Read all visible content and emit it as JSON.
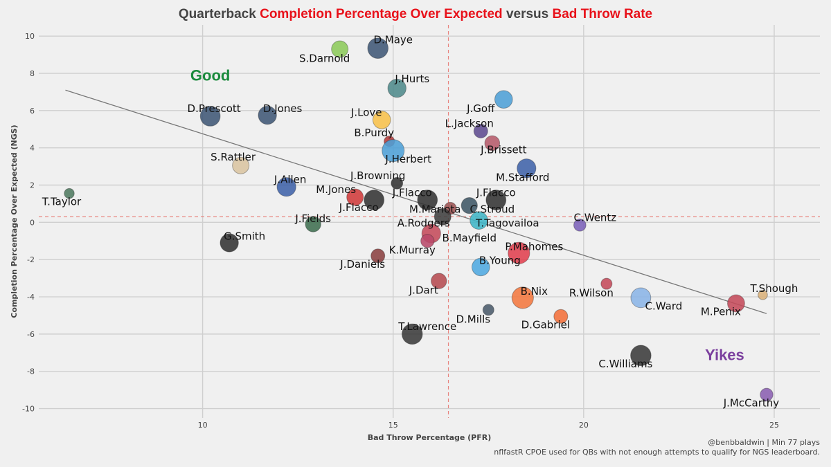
{
  "chart_data": {
    "type": "scatter",
    "title_parts": [
      {
        "text": "Quarterback ",
        "highlight": false
      },
      {
        "text": "Completion Percentage Over Expected",
        "highlight": true
      },
      {
        "text": " versus ",
        "highlight": false
      },
      {
        "text": "Bad Throw Rate",
        "highlight": true
      }
    ],
    "xlabel": "Bad Throw Percentage (PFR)",
    "ylabel": "Completion Percentage Over Expected (NGS)",
    "xlim": [
      5.7,
      26.2
    ],
    "ylim": [
      -10.5,
      10.6
    ],
    "x_ticks": [
      10,
      15,
      20,
      25
    ],
    "y_ticks": [
      -10,
      -8,
      -6,
      -4,
      -2,
      0,
      2,
      4,
      6,
      8,
      10
    ],
    "grid": true,
    "mean_x": 16.45,
    "mean_y": 0.3,
    "trend_line": {
      "x": [
        6.4,
        24.8
      ],
      "y": [
        7.1,
        -4.9
      ]
    },
    "annotations": [
      {
        "text": "Good",
        "x": 10.2,
        "y": 7.9,
        "color": "#1a8a3c"
      },
      {
        "text": "Yikes",
        "x": 23.7,
        "y": -7.1,
        "color": "#7b3f9e"
      }
    ],
    "points": [
      {
        "name": "D.Maye",
        "x": 14.6,
        "y": 9.35,
        "size": 1.35,
        "color": "#3f5775",
        "lx": 15.0,
        "ly": 9.8
      },
      {
        "name": "S.Darnold",
        "x": 13.6,
        "y": 9.3,
        "size": 1.0,
        "color": "#8cc95a",
        "lx": 13.2,
        "ly": 8.8
      },
      {
        "name": "J.Hurts",
        "x": 15.1,
        "y": 7.2,
        "size": 1.15,
        "color": "#4f8a8b",
        "lx": 15.5,
        "ly": 7.7
      },
      {
        "name": "J.Goff",
        "x": 17.9,
        "y": 6.6,
        "size": 1.1,
        "color": "#4d9fd6",
        "lx": 17.3,
        "ly": 6.1
      },
      {
        "name": "D.Prescott",
        "x": 10.2,
        "y": 5.7,
        "size": 1.3,
        "color": "#3f5775",
        "lx": 10.3,
        "ly": 6.1
      },
      {
        "name": "D.Jones",
        "x": 11.7,
        "y": 5.75,
        "size": 1.15,
        "color": "#3f5775",
        "lx": 12.1,
        "ly": 6.1
      },
      {
        "name": "J.Love",
        "x": 14.7,
        "y": 5.5,
        "size": 1.1,
        "color": "#f7c04a",
        "lx": 14.3,
        "ly": 5.9
      },
      {
        "name": "L.Jackson",
        "x": 17.3,
        "y": 4.9,
        "size": 0.75,
        "color": "#5e4b8f",
        "lx": 17.0,
        "ly": 5.3
      },
      {
        "name": "B.Purdy",
        "x": 14.9,
        "y": 4.35,
        "size": 0.45,
        "color": "#b53a3a",
        "lx": 14.5,
        "ly": 4.8
      },
      {
        "name": "J.Brissett",
        "x": 17.6,
        "y": 4.25,
        "size": 0.85,
        "color": "#b55a6a",
        "lx": 17.9,
        "ly": 3.9
      },
      {
        "name": "J.Herbert",
        "x": 15.0,
        "y": 3.85,
        "size": 1.5,
        "color": "#4d9fd6",
        "lx": 15.4,
        "ly": 3.4
      },
      {
        "name": "M.Stafford",
        "x": 18.5,
        "y": 2.9,
        "size": 1.2,
        "color": "#3f62a8",
        "lx": 18.4,
        "ly": 2.4
      },
      {
        "name": "S.Rattler",
        "x": 11.0,
        "y": 3.05,
        "size": 1.0,
        "color": "#d9c4a0",
        "lx": 10.8,
        "ly": 3.5
      },
      {
        "name": "J.Browning",
        "x": 15.1,
        "y": 2.1,
        "size": 0.55,
        "color": "#333333",
        "lx": 14.6,
        "ly": 2.5
      },
      {
        "name": "J.Allen",
        "x": 12.2,
        "y": 1.9,
        "size": 1.2,
        "color": "#3f62a8",
        "lx": 12.3,
        "ly": 2.3
      },
      {
        "name": "T.Taylor",
        "x": 6.5,
        "y": 1.55,
        "size": 0.4,
        "color": "#4f7a60",
        "lx": 6.3,
        "ly": 1.1
      },
      {
        "name": "M.Jones",
        "x": 14.0,
        "y": 1.35,
        "size": 1.0,
        "color": "#cf3a3a",
        "lx": 13.5,
        "ly": 1.75
      },
      {
        "name": "J.Flacco",
        "x": 14.5,
        "y": 1.2,
        "size": 1.3,
        "color": "#333333",
        "lx": 14.1,
        "ly": 0.8
      },
      {
        "name": "J.Flacco",
        "x": 15.9,
        "y": 1.2,
        "size": 1.3,
        "color": "#333333",
        "lx": 15.5,
        "ly": 1.6
      },
      {
        "name": "J.Flacco",
        "x": 17.7,
        "y": 1.2,
        "size": 1.3,
        "color": "#333333",
        "lx": 17.7,
        "ly": 1.6
      },
      {
        "name": "M.Mariota",
        "x": 16.5,
        "y": 0.75,
        "size": 0.6,
        "color": "#9c5252",
        "lx": 16.1,
        "ly": 0.7
      },
      {
        "name": "C.Stroud",
        "x": 17.0,
        "y": 0.9,
        "size": 0.95,
        "color": "#3f5765",
        "lx": 17.6,
        "ly": 0.7
      },
      {
        "name": "A.Rodgers",
        "x": 16.3,
        "y": 0.3,
        "size": 1.0,
        "color": "#3f3f3f",
        "lx": 15.8,
        "ly": -0.05
      },
      {
        "name": "J.Fields",
        "x": 12.9,
        "y": -0.1,
        "size": 0.9,
        "color": "#3f6e50",
        "lx": 12.9,
        "ly": 0.2
      },
      {
        "name": "T.Tagovailoa",
        "x": 17.25,
        "y": 0.1,
        "size": 1.1,
        "color": "#3fb5c6",
        "lx": 18.0,
        "ly": -0.05
      },
      {
        "name": "C.Wentz",
        "x": 19.9,
        "y": -0.15,
        "size": 0.6,
        "color": "#7b61b8",
        "lx": 20.3,
        "ly": 0.25
      },
      {
        "name": "G.Smith",
        "x": 10.7,
        "y": -1.1,
        "size": 1.15,
        "color": "#333333",
        "lx": 11.1,
        "ly": -0.75
      },
      {
        "name": "B.Mayfield",
        "x": 16.0,
        "y": -0.6,
        "size": 1.2,
        "color": "#c44a5a",
        "lx": 17.0,
        "ly": -0.85
      },
      {
        "name": "K.Murray",
        "x": 15.9,
        "y": -1.0,
        "size": 0.7,
        "color": "#b84a6a",
        "lx": 15.5,
        "ly": -1.5
      },
      {
        "name": "P.Mahomes",
        "x": 18.3,
        "y": -1.65,
        "size": 1.45,
        "color": "#e0404f",
        "lx": 18.7,
        "ly": -1.3
      },
      {
        "name": "J.Daniels",
        "x": 14.6,
        "y": -1.8,
        "size": 0.75,
        "color": "#8a4040",
        "lx": 14.2,
        "ly": -2.25
      },
      {
        "name": "B.Young",
        "x": 17.3,
        "y": -2.4,
        "size": 1.1,
        "color": "#4fa8e0",
        "lx": 17.8,
        "ly": -2.05
      },
      {
        "name": "J.Dart",
        "x": 16.2,
        "y": -3.15,
        "size": 0.9,
        "color": "#b54a50",
        "lx": 15.8,
        "ly": -3.65
      },
      {
        "name": "R.Wilson",
        "x": 20.6,
        "y": -3.3,
        "size": 0.5,
        "color": "#c44a5a",
        "lx": 20.2,
        "ly": -3.8
      },
      {
        "name": "B.Nix",
        "x": 18.4,
        "y": -4.05,
        "size": 1.45,
        "color": "#f2783f",
        "lx": 18.7,
        "ly": -3.7
      },
      {
        "name": "C.Ward",
        "x": 21.5,
        "y": -4.05,
        "size": 1.3,
        "color": "#8ab4e6",
        "lx": 22.1,
        "ly": -4.5
      },
      {
        "name": "M.Penix",
        "x": 24.0,
        "y": -4.35,
        "size": 1.05,
        "color": "#c44a5a",
        "lx": 23.6,
        "ly": -4.8
      },
      {
        "name": "T.Shough",
        "x": 24.7,
        "y": -3.9,
        "size": 0.35,
        "color": "#d9b07a",
        "lx": 25.0,
        "ly": -3.55
      },
      {
        "name": "D.Mills",
        "x": 17.5,
        "y": -4.7,
        "size": 0.5,
        "color": "#4a5a6a",
        "lx": 17.1,
        "ly": -5.2
      },
      {
        "name": "D.Gabriel",
        "x": 19.4,
        "y": -5.05,
        "size": 0.75,
        "color": "#f2703a",
        "lx": 19.0,
        "ly": -5.5
      },
      {
        "name": "T.Lawrence",
        "x": 15.5,
        "y": -6.0,
        "size": 1.35,
        "color": "#3a3a3a",
        "lx": 15.9,
        "ly": -5.6
      },
      {
        "name": "C.Williams",
        "x": 21.5,
        "y": -7.15,
        "size": 1.35,
        "color": "#3a3a3a",
        "lx": 21.1,
        "ly": -7.6
      },
      {
        "name": "J.McCarthy",
        "x": 24.8,
        "y": -9.25,
        "size": 0.65,
        "color": "#8a5fb0",
        "lx": 24.4,
        "ly": -9.7
      }
    ]
  },
  "footer": {
    "line1": "@benbbaldwin | Min 77 plays",
    "line2": "nflfastR CPOE used for QBs with not enough attempts to qualify for NGS leaderboard."
  }
}
